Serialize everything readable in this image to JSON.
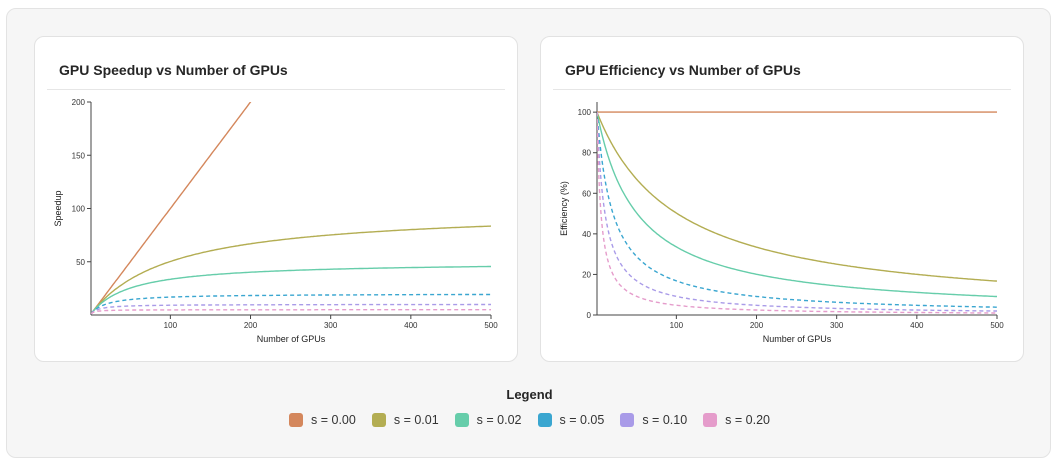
{
  "colors": {
    "s0": "#d4875c",
    "s1": "#b3ad52",
    "s2": "#66cdaa",
    "s5": "#3aa6d0",
    "s10": "#a99be8",
    "s20": "#e59ccb"
  },
  "legend": {
    "title": "Legend",
    "items": [
      {
        "label": "s = 0.00",
        "color": "#d4875c"
      },
      {
        "label": "s = 0.01",
        "color": "#b3ad52"
      },
      {
        "label": "s = 0.02",
        "color": "#66cdaa"
      },
      {
        "label": "s = 0.05",
        "color": "#3aa6d0"
      },
      {
        "label": "s = 0.10",
        "color": "#a99be8"
      },
      {
        "label": "s = 0.20",
        "color": "#e59ccb"
      }
    ]
  },
  "chart_data": [
    {
      "type": "line",
      "title": "GPU Speedup vs Number of GPUs",
      "xlabel": "Number of GPUs",
      "ylabel": "Speedup",
      "xlim": [
        1,
        500
      ],
      "ylim": [
        0,
        200
      ],
      "xticks": [
        100,
        200,
        300,
        400,
        500
      ],
      "yticks": [
        50,
        100,
        150,
        200
      ],
      "legend": "bottom",
      "series": [
        {
          "name": "s = 0.00",
          "s": 0.0,
          "dashed": false,
          "x": [
            1,
            10,
            50,
            100,
            150,
            200,
            210
          ],
          "y": [
            1,
            10,
            50,
            100,
            150,
            200,
            210
          ]
        },
        {
          "name": "s = 0.01",
          "s": 0.01,
          "dashed": false,
          "x": [
            1,
            10,
            50,
            100,
            150,
            200,
            300,
            400,
            500
          ],
          "y": [
            1,
            9.2,
            33.6,
            50.3,
            60.3,
            66.9,
            75.2,
            80.2,
            83.5
          ]
        },
        {
          "name": "s = 0.02",
          "s": 0.02,
          "dashed": false,
          "x": [
            1,
            10,
            50,
            100,
            150,
            200,
            300,
            400,
            500
          ],
          "y": [
            1,
            8.5,
            25.3,
            33.6,
            37.7,
            40.2,
            42.9,
            44.4,
            45.4
          ]
        },
        {
          "name": "s = 0.05",
          "s": 0.05,
          "dashed": true,
          "x": [
            1,
            10,
            50,
            100,
            150,
            200,
            300,
            400,
            500
          ],
          "y": [
            1,
            6.9,
            14.5,
            16.8,
            17.7,
            18.3,
            18.8,
            19.1,
            19.3
          ]
        },
        {
          "name": "s = 0.10",
          "s": 0.1,
          "dashed": true,
          "x": [
            1,
            10,
            50,
            100,
            150,
            200,
            300,
            400,
            500
          ],
          "y": [
            1,
            5.3,
            8.5,
            9.2,
            9.4,
            9.6,
            9.7,
            9.8,
            9.8
          ]
        },
        {
          "name": "s = 0.20",
          "s": 0.2,
          "dashed": true,
          "x": [
            1,
            10,
            50,
            100,
            150,
            200,
            300,
            400,
            500
          ],
          "y": [
            1,
            3.6,
            4.6,
            4.8,
            4.9,
            4.9,
            4.9,
            5.0,
            5.0
          ]
        }
      ]
    },
    {
      "type": "line",
      "title": "GPU Efficiency vs Number of GPUs",
      "xlabel": "Number of GPUs",
      "ylabel": "Efficiency (%)",
      "xlim": [
        1,
        500
      ],
      "ylim": [
        0,
        105
      ],
      "xticks": [
        100,
        200,
        300,
        400,
        500
      ],
      "yticks": [
        0,
        20,
        40,
        60,
        80,
        100
      ],
      "legend": "bottom",
      "series": [
        {
          "name": "s = 0.00",
          "s": 0.0,
          "dashed": false,
          "x": [
            1,
            100,
            200,
            300,
            400,
            500
          ],
          "y": [
            100,
            100,
            100,
            100,
            100,
            100
          ]
        },
        {
          "name": "s = 0.01",
          "s": 0.01,
          "dashed": false,
          "x": [
            1,
            10,
            50,
            100,
            150,
            200,
            300,
            400,
            500
          ],
          "y": [
            100,
            91.7,
            67.1,
            50.3,
            40.2,
            33.4,
            25.1,
            20.1,
            16.7
          ]
        },
        {
          "name": "s = 0.02",
          "s": 0.02,
          "dashed": false,
          "x": [
            1,
            10,
            50,
            100,
            150,
            200,
            300,
            400,
            500
          ],
          "y": [
            100,
            84.7,
            50.5,
            33.6,
            25.1,
            20.1,
            14.3,
            11.1,
            9.1
          ]
        },
        {
          "name": "s = 0.05",
          "s": 0.05,
          "dashed": true,
          "x": [
            1,
            10,
            50,
            100,
            150,
            200,
            300,
            400,
            500
          ],
          "y": [
            100,
            69.0,
            29.0,
            16.8,
            11.8,
            9.1,
            6.3,
            4.8,
            3.9
          ]
        },
        {
          "name": "s = 0.10",
          "s": 0.1,
          "dashed": true,
          "x": [
            1,
            10,
            50,
            100,
            150,
            200,
            300,
            400,
            500
          ],
          "y": [
            100,
            52.6,
            16.9,
            9.2,
            6.3,
            4.8,
            3.2,
            2.4,
            2.0
          ]
        },
        {
          "name": "s = 0.20",
          "s": 0.2,
          "dashed": true,
          "x": [
            1,
            10,
            50,
            100,
            150,
            200,
            300,
            400,
            500
          ],
          "y": [
            100,
            35.7,
            9.2,
            4.8,
            3.3,
            2.5,
            1.6,
            1.2,
            1.0
          ]
        }
      ]
    }
  ]
}
